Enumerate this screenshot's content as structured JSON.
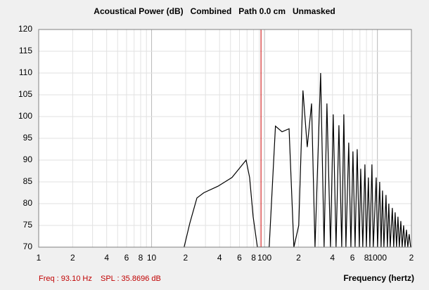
{
  "chart_data": {
    "type": "line",
    "title": "Acoustical Power (dB)   Combined   Path 0.0 cm   Unmasked",
    "x_label": "Frequency (hertz)",
    "xscale": "log",
    "grid": true,
    "color": "#000000",
    "xlim": [
      1,
      2000
    ],
    "ylim": [
      70,
      120
    ],
    "xticks": [
      1,
      2,
      4,
      6,
      8,
      10,
      {
        "value": 20,
        "label": "2"
      },
      {
        "value": 40,
        "label": "4"
      },
      {
        "value": 60,
        "label": "6"
      },
      {
        "value": 80,
        "label": "8"
      },
      100,
      {
        "value": 200,
        "label": "2"
      },
      {
        "value": 400,
        "label": "4"
      },
      {
        "value": 600,
        "label": "6"
      },
      {
        "value": 800,
        "label": "8"
      },
      1000,
      {
        "value": 2000,
        "label": "2"
      }
    ],
    "xminor": [
      3,
      5,
      7,
      9,
      30,
      50,
      70,
      90,
      300,
      500,
      700,
      900
    ],
    "yticks": [
      70,
      75,
      80,
      85,
      90,
      95,
      100,
      105,
      110,
      115,
      120
    ],
    "cursor": {
      "freq": 93.1,
      "color": "#cc0000",
      "freq_text": "Freq : 93.10 Hz",
      "spl_text": "SPL : 35.8696 dB"
    },
    "x": [
      19.4,
      21.8,
      25.2,
      29.0,
      38.7,
      51.5,
      59.5,
      68.7,
      73.8,
      79.3,
      86.5,
      110,
      125,
      143,
      165,
      182,
      201,
      219,
      239,
      261,
      280,
      314,
      337,
      357,
      384,
      406,
      430,
      456,
      483,
      504,
      526,
      557,
      582,
      607,
      634,
      662,
      691,
      711,
      742,
      775,
      798,
      832,
      857,
      894,
      920,
      975,
      1003,
      1047,
      1077,
      1109,
      1141,
      1191,
      1225,
      1261,
      1298,
      1355,
      1394,
      1435,
      1476,
      1520,
      1563,
      1611,
      1656,
      1706,
      1754,
      1807,
      1858,
      1910,
      1968
    ],
    "values": [
      70,
      75.5,
      81.3,
      82.5,
      84,
      86,
      88,
      90,
      86,
      77,
      70,
      70,
      97.8,
      96.5,
      97.2,
      70,
      75,
      106,
      93,
      103,
      70,
      110,
      70,
      103,
      70,
      100.5,
      70,
      98,
      70,
      100.5,
      70,
      94,
      70,
      92,
      70,
      92.5,
      70,
      88,
      70,
      89,
      70,
      86,
      70,
      89,
      70,
      86,
      70,
      85,
      70,
      83,
      70,
      82,
      70,
      80,
      70,
      79,
      70,
      78,
      70,
      77,
      70,
      76,
      70,
      75,
      70,
      74,
      70,
      73,
      70
    ]
  }
}
